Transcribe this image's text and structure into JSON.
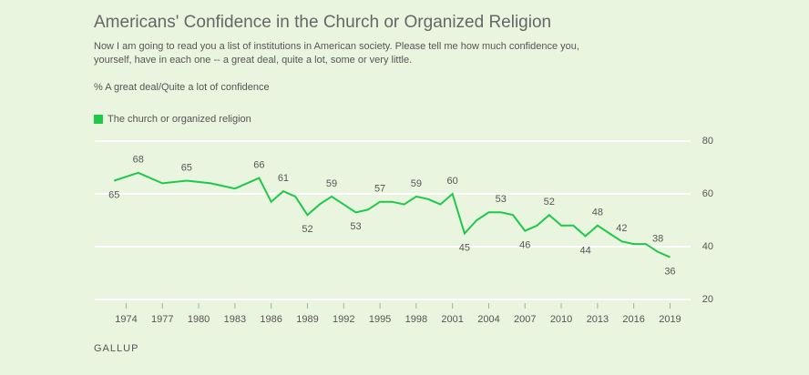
{
  "chart_data": {
    "type": "line",
    "title": "Americans' Confidence in the Church or Organized Religion",
    "subtitle": "Now I am going to read you a list of institutions in American society. Please tell me how much confidence you, yourself, have in each one -- a great deal, quite a lot, some or very little.",
    "y_label": "% A great deal/Quite a lot of confidence",
    "source": "GALLUP",
    "x": [
      1973,
      1975,
      1977,
      1979,
      1981,
      1983,
      1985,
      1986,
      1987,
      1988,
      1989,
      1990,
      1991,
      1993,
      1994,
      1995,
      1996,
      1997,
      1998,
      1999,
      2000,
      2001,
      2002,
      2003,
      2004,
      2005,
      2006,
      2007,
      2008,
      2009,
      2010,
      2011,
      2012,
      2013,
      2014,
      2015,
      2016,
      2017,
      2018,
      2019
    ],
    "series": [
      {
        "name": "The church or organized religion",
        "color": "#1ec94a",
        "values": [
          65,
          68,
          64,
          65,
          64,
          62,
          66,
          57,
          61,
          59,
          52,
          56,
          59,
          53,
          54,
          57,
          57,
          56,
          59,
          58,
          56,
          60,
          45,
          50,
          53,
          53,
          52,
          46,
          48,
          52,
          48,
          48,
          44,
          48,
          45,
          42,
          41,
          41,
          38,
          36
        ],
        "value_labels": [
          "65",
          "68",
          null,
          "65",
          null,
          null,
          "66",
          null,
          "61",
          null,
          "52",
          null,
          "59",
          "53",
          null,
          "57",
          null,
          null,
          "59",
          null,
          null,
          "60",
          "45",
          null,
          null,
          "53",
          null,
          "46",
          null,
          "52",
          null,
          null,
          "44",
          "48",
          null,
          "42",
          null,
          null,
          "38",
          "36"
        ]
      }
    ],
    "xlim": [
      1971.4,
      2020.7
    ],
    "xticks": [
      1974,
      1977,
      1980,
      1983,
      1986,
      1989,
      1992,
      1995,
      1998,
      2001,
      2004,
      2007,
      2010,
      2013,
      2016,
      2019
    ],
    "ylim": [
      20,
      80
    ],
    "yticks": [
      20,
      40,
      60,
      80
    ],
    "grid": true
  }
}
